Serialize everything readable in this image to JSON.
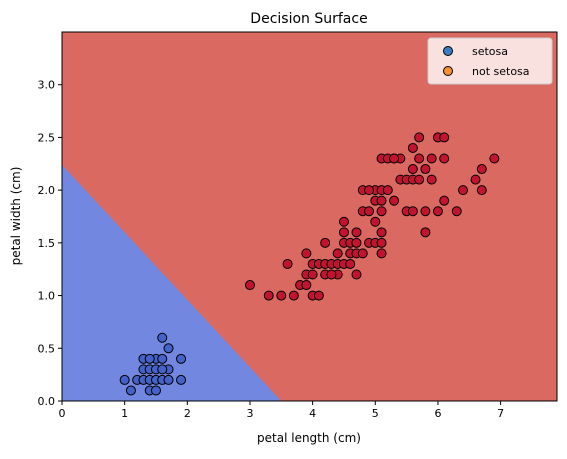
{
  "chart_data": {
    "type": "scatter",
    "title": "Decision Surface",
    "xlabel": "petal length (cm)",
    "ylabel": "petal width (cm)",
    "xlim": [
      0,
      7.9
    ],
    "ylim": [
      0,
      3.5
    ],
    "x_ticks": [
      "0",
      "1",
      "2",
      "3",
      "4",
      "5",
      "6",
      "7"
    ],
    "y_ticks": [
      "0.0",
      "0.5",
      "1.0",
      "1.5",
      "2.0",
      "2.5",
      "3.0"
    ],
    "grid": false,
    "legend_position": "top-right",
    "decision_boundary": [
      [
        0,
        2.24
      ],
      [
        3.5,
        0
      ]
    ],
    "regions": [
      {
        "region": "setosa side",
        "color": "#7287e0"
      },
      {
        "region": "not setosa side",
        "color": "#d96961"
      }
    ],
    "series": [
      {
        "name": "setosa",
        "legend_color": "#3b7dc4",
        "marker_color": "#4462c8",
        "points": [
          [
            1.0,
            0.2
          ],
          [
            1.1,
            0.1
          ],
          [
            1.2,
            0.2
          ],
          [
            1.3,
            0.2
          ],
          [
            1.3,
            0.3
          ],
          [
            1.3,
            0.4
          ],
          [
            1.4,
            0.1
          ],
          [
            1.4,
            0.2
          ],
          [
            1.4,
            0.3
          ],
          [
            1.5,
            0.1
          ],
          [
            1.5,
            0.2
          ],
          [
            1.5,
            0.4
          ],
          [
            1.6,
            0.2
          ],
          [
            1.6,
            0.4
          ],
          [
            1.6,
            0.6
          ],
          [
            1.7,
            0.2
          ],
          [
            1.7,
            0.3
          ],
          [
            1.7,
            0.5
          ],
          [
            1.9,
            0.2
          ],
          [
            1.9,
            0.4
          ],
          [
            1.5,
            0.3
          ],
          [
            1.4,
            0.4
          ],
          [
            1.6,
            0.3
          ]
        ]
      },
      {
        "name": "not setosa",
        "legend_color": "#f5922d",
        "marker_color": "#c2142e",
        "points": [
          [
            3.0,
            1.1
          ],
          [
            3.3,
            1.0
          ],
          [
            3.5,
            1.0
          ],
          [
            3.6,
            1.3
          ],
          [
            3.7,
            1.0
          ],
          [
            3.8,
            1.1
          ],
          [
            3.9,
            1.1
          ],
          [
            3.9,
            1.2
          ],
          [
            3.9,
            1.4
          ],
          [
            4.0,
            1.0
          ],
          [
            4.0,
            1.2
          ],
          [
            4.0,
            1.3
          ],
          [
            4.1,
            1.0
          ],
          [
            4.1,
            1.3
          ],
          [
            4.2,
            1.2
          ],
          [
            4.2,
            1.3
          ],
          [
            4.2,
            1.5
          ],
          [
            4.3,
            1.3
          ],
          [
            4.4,
            1.2
          ],
          [
            4.4,
            1.3
          ],
          [
            4.4,
            1.4
          ],
          [
            4.5,
            1.3
          ],
          [
            4.5,
            1.5
          ],
          [
            4.5,
            1.6
          ],
          [
            4.5,
            1.7
          ],
          [
            4.6,
            1.3
          ],
          [
            4.6,
            1.4
          ],
          [
            4.6,
            1.5
          ],
          [
            4.7,
            1.2
          ],
          [
            4.7,
            1.4
          ],
          [
            4.7,
            1.5
          ],
          [
            4.8,
            1.4
          ],
          [
            4.8,
            1.8
          ],
          [
            4.9,
            1.5
          ],
          [
            4.9,
            1.8
          ],
          [
            5.0,
            1.5
          ],
          [
            5.0,
            1.7
          ],
          [
            5.0,
            2.0
          ],
          [
            5.0,
            1.9
          ],
          [
            5.1,
            1.5
          ],
          [
            5.1,
            1.6
          ],
          [
            5.1,
            1.8
          ],
          [
            5.1,
            1.9
          ],
          [
            5.1,
            2.0
          ],
          [
            5.1,
            2.3
          ],
          [
            5.2,
            2.0
          ],
          [
            5.2,
            2.3
          ],
          [
            5.3,
            1.9
          ],
          [
            5.3,
            2.3
          ],
          [
            5.4,
            2.1
          ],
          [
            5.4,
            2.3
          ],
          [
            5.5,
            1.8
          ],
          [
            5.5,
            2.1
          ],
          [
            5.6,
            1.8
          ],
          [
            5.6,
            2.1
          ],
          [
            5.6,
            2.2
          ],
          [
            5.6,
            2.4
          ],
          [
            5.7,
            2.1
          ],
          [
            5.7,
            2.3
          ],
          [
            5.7,
            2.5
          ],
          [
            5.8,
            1.6
          ],
          [
            5.8,
            1.8
          ],
          [
            5.8,
            2.2
          ],
          [
            5.9,
            2.1
          ],
          [
            5.9,
            2.3
          ],
          [
            6.0,
            1.8
          ],
          [
            6.0,
            2.5
          ],
          [
            6.1,
            1.9
          ],
          [
            6.1,
            2.3
          ],
          [
            6.1,
            2.5
          ],
          [
            6.3,
            1.8
          ],
          [
            6.4,
            2.0
          ],
          [
            6.6,
            2.1
          ],
          [
            6.7,
            2.0
          ],
          [
            6.7,
            2.2
          ],
          [
            6.9,
            2.3
          ],
          [
            4.8,
            2.0
          ],
          [
            5.3,
            2.3
          ],
          [
            4.3,
            1.2
          ],
          [
            4.7,
            1.6
          ],
          [
            4.9,
            2.0
          ],
          [
            5.1,
            1.4
          ]
        ]
      }
    ]
  }
}
